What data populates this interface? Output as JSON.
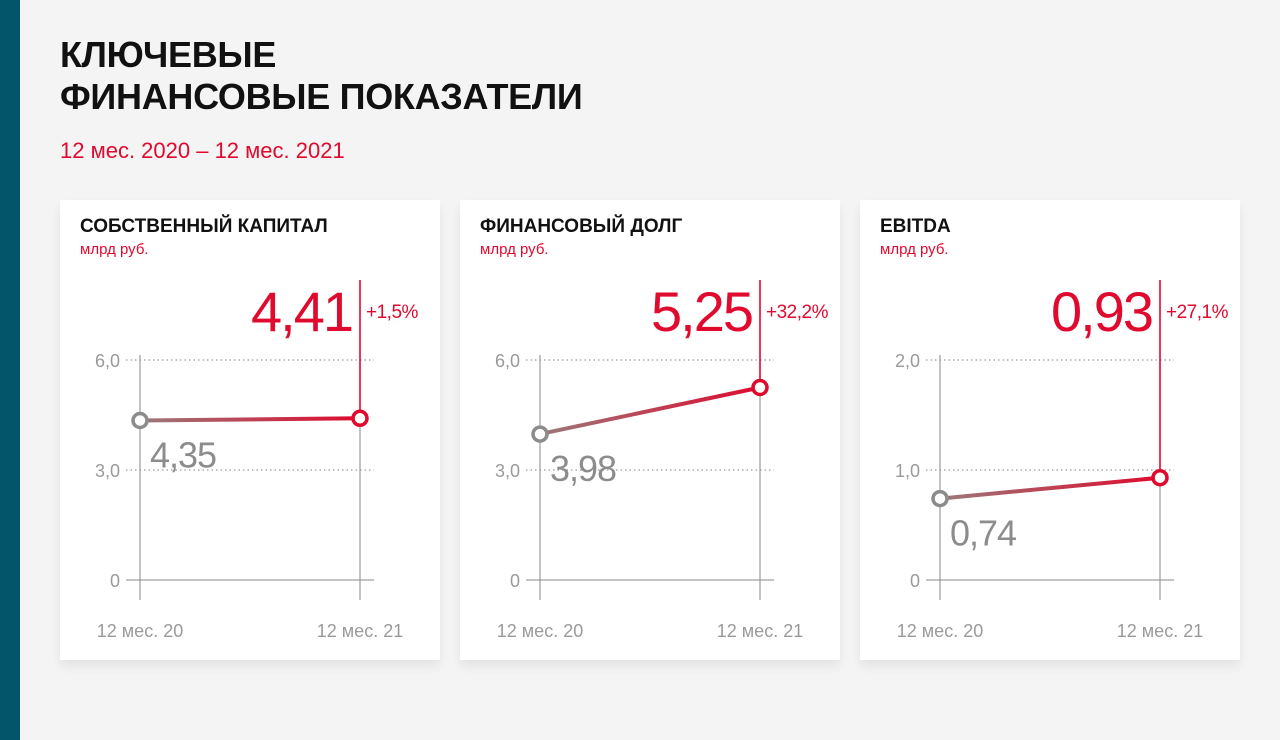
{
  "colors": {
    "accent": "#e0092e",
    "side_bar": "#03566a",
    "axis": "#8a8a8a",
    "grid": "#9a9a9a",
    "start_marker": "#8c8c8c",
    "line_start": "#9a7a7a",
    "line_end": "#e0092e"
  },
  "header": {
    "title_line1": "КЛЮЧЕВЫЕ",
    "title_line2": "ФИНАНСОВЫЕ ПОКАЗАТЕЛИ",
    "period": "12 мес. 2020 – 12 мес. 2021"
  },
  "chart_data": [
    {
      "type": "line",
      "title": "СОБСТВЕННЫЙ КАПИТАЛ",
      "unit": "млрд руб.",
      "categories": [
        "12 мес. 20",
        "12 мес. 21"
      ],
      "values": [
        4.35,
        4.41
      ],
      "value_labels": [
        "4,35",
        "4,41"
      ],
      "change": "+1,5%",
      "ylim": [
        0,
        6
      ],
      "yticks": [
        0,
        3,
        6
      ],
      "ytick_labels": [
        "0",
        "3,0",
        "6,0"
      ],
      "grid": true
    },
    {
      "type": "line",
      "title": "ФИНАНСОВЫЙ ДОЛГ",
      "unit": "млрд руб.",
      "categories": [
        "12 мес. 20",
        "12 мес. 21"
      ],
      "values": [
        3.98,
        5.25
      ],
      "value_labels": [
        "3,98",
        "5,25"
      ],
      "change": "+32,2%",
      "ylim": [
        0,
        6
      ],
      "yticks": [
        0,
        3,
        6
      ],
      "ytick_labels": [
        "0",
        "3,0",
        "6,0"
      ],
      "grid": true
    },
    {
      "type": "line",
      "title": "EBITDA",
      "unit": "млрд руб.",
      "categories": [
        "12 мес. 20",
        "12 мес. 21"
      ],
      "values": [
        0.74,
        0.93
      ],
      "value_labels": [
        "0,74",
        "0,93"
      ],
      "change": "+27,1%",
      "ylim": [
        0,
        2
      ],
      "yticks": [
        0,
        1,
        2
      ],
      "ytick_labels": [
        "0",
        "1,0",
        "2,0"
      ],
      "grid": true
    }
  ]
}
